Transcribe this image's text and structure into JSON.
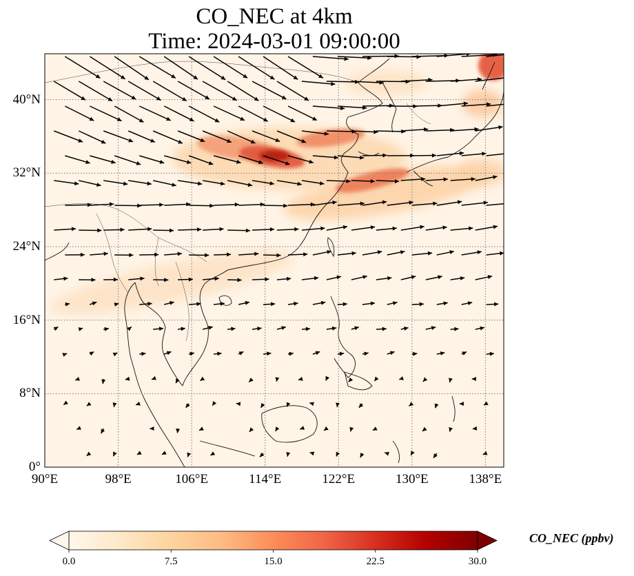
{
  "figure": {
    "title_line1": "CO_NEC at 4km",
    "title_line2": "Time: 2024-03-01 09:00:00"
  },
  "map": {
    "projection": "PlateCarree",
    "lon_range": [
      90,
      140
    ],
    "lat_range": [
      0,
      45
    ],
    "lon_ticks": [
      {
        "value": 90,
        "label": "90°E"
      },
      {
        "value": 98,
        "label": "98°E"
      },
      {
        "value": 106,
        "label": "106°E"
      },
      {
        "value": 114,
        "label": "114°E"
      },
      {
        "value": 122,
        "label": "122°E"
      },
      {
        "value": 130,
        "label": "130°E"
      },
      {
        "value": 138,
        "label": "138°E"
      }
    ],
    "lat_ticks": [
      {
        "value": 0,
        "label": "0°"
      },
      {
        "value": 8,
        "label": "8°N"
      },
      {
        "value": 16,
        "label": "16°N"
      },
      {
        "value": 24,
        "label": "24°N"
      },
      {
        "value": 32,
        "label": "32°N"
      },
      {
        "value": 40,
        "label": "40°N"
      }
    ],
    "gridlines": "dotted",
    "coastlines": true,
    "wind_vectors": true
  },
  "colorbar": {
    "label": "CO_NEC (ppbv)",
    "colormap": "OrRd",
    "range": [
      0,
      30
    ],
    "extend": "both",
    "ticks": [
      "0.0",
      "7.5",
      "15.0",
      "22.5",
      "30.0"
    ],
    "tick_values": [
      0,
      7.5,
      15,
      22.5,
      30
    ],
    "colors": [
      "#fff7ec",
      "#fee8c8",
      "#fdd49e",
      "#fdbb84",
      "#fc8d59",
      "#ef6548",
      "#d7301f",
      "#b30000",
      "#7f0000"
    ]
  }
}
